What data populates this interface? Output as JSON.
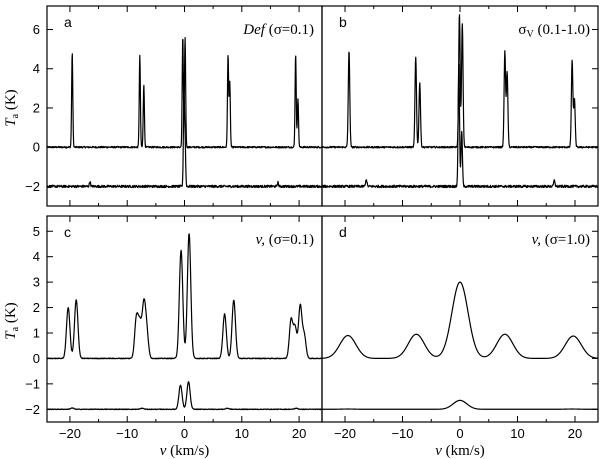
{
  "chart_data": [
    {
      "type": "line",
      "panel": "a",
      "annotation": "Def (σ=0.1)",
      "annotation_parts": {
        "italic": "Def",
        "plain": "(σ=0.1)"
      },
      "ylabel": "Ta (K)",
      "ylabel_parts": {
        "main": "T",
        "sub": "a",
        "unit": "(K)"
      },
      "xlim": [
        -24,
        24
      ],
      "ylim": [
        -3,
        7.2
      ],
      "yticks": [
        -2,
        0,
        2,
        4,
        6
      ],
      "xticks": [
        -20,
        -10,
        0,
        10,
        20
      ],
      "series": [
        {
          "baseline": 0,
          "sigma": 0.1,
          "noise": 0.04,
          "peaks": [
            [
              -19.6,
              4.8
            ],
            [
              -7.8,
              4.65
            ],
            [
              -7.1,
              3.2
            ],
            [
              -0.3,
              5.7
            ],
            [
              0.1,
              5.6
            ],
            [
              7.6,
              4.7
            ],
            [
              7.9,
              3.3
            ],
            [
              19.4,
              4.75
            ],
            [
              19.8,
              2.5
            ]
          ]
        },
        {
          "baseline": -2,
          "sigma": 0.1,
          "noise": 0.06,
          "peaks": [
            [
              -16.5,
              0.25
            ],
            [
              -0.1,
              4.3
            ],
            [
              0.1,
              2.2
            ],
            [
              16.3,
              0.2
            ]
          ]
        }
      ]
    },
    {
      "type": "line",
      "panel": "b",
      "annotation": "σV (0.1-1.0)",
      "annotation_parts": {
        "sym": "σ",
        "sub": "V",
        "plain": "(0.1-1.0)"
      },
      "xlim": [
        -24,
        24
      ],
      "ylim": [
        -3,
        7.2
      ],
      "xticks": [
        -20,
        -10,
        0,
        10,
        20
      ],
      "series": [
        {
          "baseline": 0,
          "sigma": 0.13,
          "noise": 0.04,
          "peaks": [
            [
              -19.3,
              4.9
            ],
            [
              -7.7,
              4.6
            ],
            [
              -7.0,
              3.3
            ],
            [
              -0.1,
              6.85
            ],
            [
              0.4,
              6.3
            ],
            [
              7.8,
              4.85
            ],
            [
              8.2,
              3.8
            ],
            [
              19.5,
              4.4
            ],
            [
              19.9,
              2.5
            ]
          ]
        },
        {
          "baseline": -2,
          "sigma": 0.12,
          "noise": 0.06,
          "peaks": [
            [
              -16.3,
              0.35
            ],
            [
              -0.2,
              6.2
            ],
            [
              0.3,
              2.8
            ],
            [
              16.4,
              0.3
            ]
          ]
        }
      ]
    },
    {
      "type": "line",
      "panel": "c",
      "annotation": "v, (σ=0.1)",
      "annotation_parts": {
        "italic": "v,",
        "plain": "(σ=0.1)"
      },
      "ylabel": "Ta (K)",
      "ylabel_parts": {
        "main": "T",
        "sub": "a",
        "unit": "(K)"
      },
      "xlabel": "v (km/s)",
      "xlabel_parts": {
        "italic": "v",
        "unit": "(km/s)"
      },
      "xlim": [
        -24,
        24
      ],
      "ylim": [
        -2.5,
        5.6
      ],
      "yticks": [
        -2,
        -1,
        0,
        1,
        2,
        3,
        4,
        5
      ],
      "xticks": [
        -20,
        -10,
        0,
        10,
        20
      ],
      "xticklabels": [
        "−20",
        "−10",
        "0",
        "10",
        "20"
      ],
      "series": [
        {
          "baseline": 0,
          "sigma": 0.3,
          "noise": 0.015,
          "peaks": [
            [
              -20.3,
              2.0
            ],
            [
              -18.9,
              2.3
            ],
            [
              -8.4,
              1.55
            ],
            [
              -7.8,
              1.3
            ],
            [
              -7.1,
              2.0
            ],
            [
              -6.6,
              1.0
            ],
            [
              -0.6,
              4.25
            ],
            [
              0.8,
              4.9
            ],
            [
              7.0,
              1.75
            ],
            [
              8.6,
              2.3
            ],
            [
              18.6,
              1.5
            ],
            [
              19.3,
              1.2
            ],
            [
              20.2,
              2.05
            ],
            [
              20.9,
              0.9
            ]
          ]
        },
        {
          "baseline": -2,
          "sigma": 0.28,
          "noise": 0.012,
          "peaks": [
            [
              -19.6,
              0.05
            ],
            [
              -7.4,
              0.04
            ],
            [
              -0.7,
              0.95
            ],
            [
              0.7,
              1.08
            ],
            [
              7.5,
              0.04
            ],
            [
              19.5,
              0.04
            ]
          ]
        }
      ]
    },
    {
      "type": "line",
      "panel": "d",
      "annotation": "v, (σ=1.0)",
      "annotation_parts": {
        "italic": "v,",
        "plain": "(σ=1.0)"
      },
      "xlabel": "v (km/s)",
      "xlabel_parts": {
        "italic": "v",
        "unit": "(km/s)"
      },
      "xlim": [
        -24,
        24
      ],
      "ylim": [
        -2.5,
        5.6
      ],
      "xticks": [
        -20,
        -10,
        0,
        10,
        20
      ],
      "xticklabels": [
        "−20",
        "−10",
        "0",
        "10",
        "20"
      ],
      "series": [
        {
          "baseline": 0,
          "sigma": 1.4,
          "noise": 0,
          "peaks": [
            [
              -19.5,
              0.9
            ],
            [
              -7.6,
              0.95
            ],
            [
              0.0,
              3.0
            ],
            [
              7.8,
              0.95
            ],
            [
              19.7,
              0.88
            ]
          ]
        },
        {
          "baseline": -2,
          "sigma": 1.2,
          "noise": 0,
          "peaks": [
            [
              -19.5,
              0.01
            ],
            [
              0.0,
              0.35
            ],
            [
              19.5,
              0.01
            ]
          ]
        }
      ]
    }
  ]
}
